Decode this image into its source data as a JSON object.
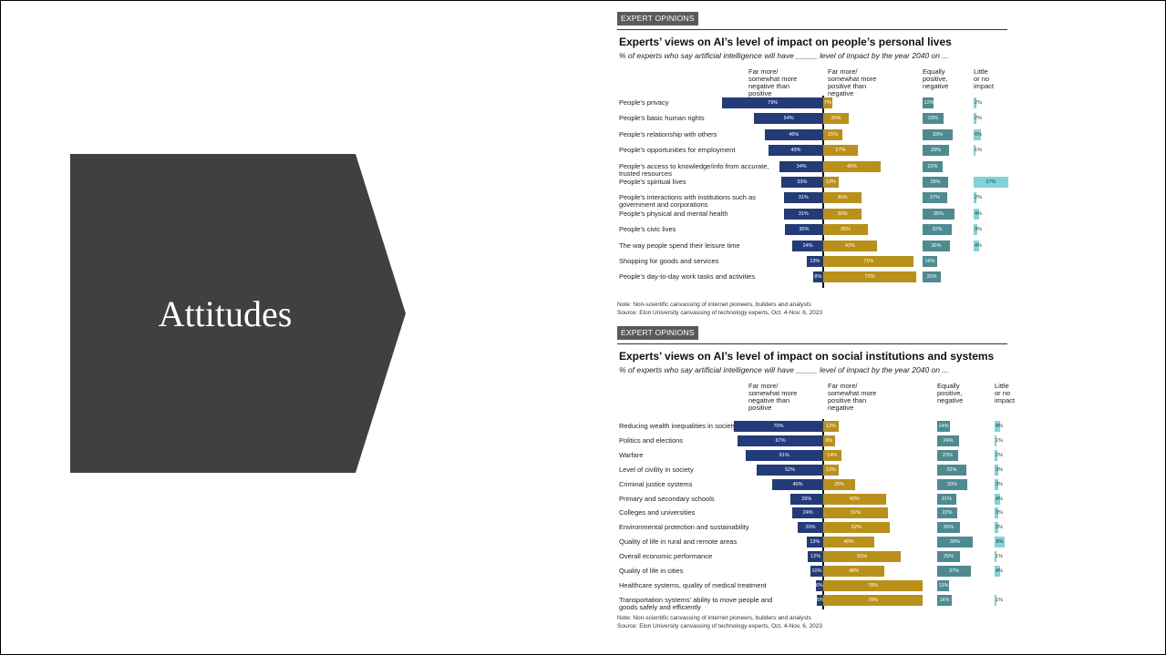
{
  "slide": {
    "section_title": "Attitudes"
  },
  "chart_data": [
    {
      "type": "bar",
      "tag": "EXPERT OPINIONS",
      "title": "Experts’ views on AI’s level of impact on people’s personal lives",
      "subtitle": "% of experts who say artificial intelligence will have _____ level of impact by the year 2040 on ...",
      "column_headers": {
        "negative": "Far more/\nsomewhat more\nnegative than\npositive",
        "positive": "Far more/\nsomewhat more\npositive than\nnegative",
        "equal": "Equally\npositive,\nnegative",
        "little": "Little\nor no\nimpact"
      },
      "categories": [
        "People’s privacy",
        "People’s basic human rights",
        "People’s relationship with others",
        "People’s opportunities for employment",
        "People’s access to knowledge/info from accurate, trusted resources",
        "People’s spiritual lives",
        "People’s interactions with institutions such as government and corporations",
        "People’s physical and mental health",
        "People’s civic lives",
        "The way people spend their leisure time",
        "Shopping for goods and services",
        "People’s day-to-day work tasks and activities"
      ],
      "series": [
        {
          "name": "Far more/somewhat more negative than positive",
          "values": [
            79,
            54,
            46,
            43,
            34,
            33,
            31,
            31,
            30,
            24,
            13,
            8
          ]
        },
        {
          "name": "Far more/somewhat more positive than negative",
          "values": [
            7,
            20,
            15,
            27,
            45,
            12,
            30,
            30,
            35,
            42,
            71,
            73
          ]
        },
        {
          "name": "Equally positive, negative",
          "values": [
            12,
            23,
            33,
            29,
            22,
            28,
            27,
            35,
            32,
            30,
            16,
            20
          ]
        },
        {
          "name": "Little or no impact",
          "values": [
            2,
            2,
            6,
            1,
            null,
            27,
            2,
            4,
            3,
            4,
            null,
            null
          ]
        }
      ],
      "note": "Note: Non-scientific canvassing of internet pioneers, builders and analysts",
      "source": "Source: Elon University canvassing of technology experts, Oct. 4-Nov. 6, 2023",
      "colors": {
        "negative": "#243b7a",
        "positive": "#b8901a",
        "equal": "#4e8a92",
        "little": "#7fd4da"
      }
    },
    {
      "type": "bar",
      "tag": "EXPERT OPINIONS",
      "title": "Experts’ views on AI’s level of impact on social institutions and systems",
      "subtitle": "% of experts who say artificial intelligence will have _____ level of impact by the year 2040 on ...",
      "column_headers": {
        "negative": "Far more/\nsomewhat more\nnegative than\npositive",
        "positive": "Far more/\nsomewhat more\npositive than\nnegative",
        "equal": "Equally\npositive,\nnegative",
        "little": "Little\nor no\nimpact"
      },
      "categories": [
        "Reducing wealth inequalities in society",
        "Politics and elections",
        "Warfare",
        "Level of civility in society",
        "Criminal justice systems",
        "Primary and secondary schools",
        "Colleges and universities",
        "Environmental protection and sustainability",
        "Quality of life in rural and remote areas",
        "Overall economic performance",
        "Quality of life in cities",
        "Healthcare systems, quality of medical treatment",
        "Transportation systems’ ability to move people and goods safely and efficiently"
      ],
      "series": [
        {
          "name": "Far more/somewhat more negative than positive",
          "values": [
            70,
            67,
            61,
            52,
            40,
            26,
            24,
            20,
            13,
            12,
            10,
            6,
            5
          ]
        },
        {
          "name": "Far more/somewhat more positive than negative",
          "values": [
            12,
            9,
            14,
            12,
            25,
            49,
            51,
            52,
            40,
            61,
            48,
            78,
            78
          ]
        },
        {
          "name": "Equally positive, negative",
          "values": [
            14,
            24,
            23,
            32,
            33,
            21,
            22,
            25,
            39,
            25,
            37,
            13,
            16
          ]
        },
        {
          "name": "Little or no impact",
          "values": [
            4,
            1,
            2,
            3,
            3,
            4,
            3,
            3,
            8,
            1,
            4,
            null,
            1
          ]
        }
      ],
      "note": "Note: Non-scientific canvassing of internet pioneers, builders and analysts",
      "source": "Source: Elon University canvassing of technology experts, Oct. 4-Nov. 6, 2023",
      "colors": {
        "negative": "#243b7a",
        "positive": "#b8901a",
        "equal": "#4e8a92",
        "little": "#7fd4da"
      }
    }
  ]
}
